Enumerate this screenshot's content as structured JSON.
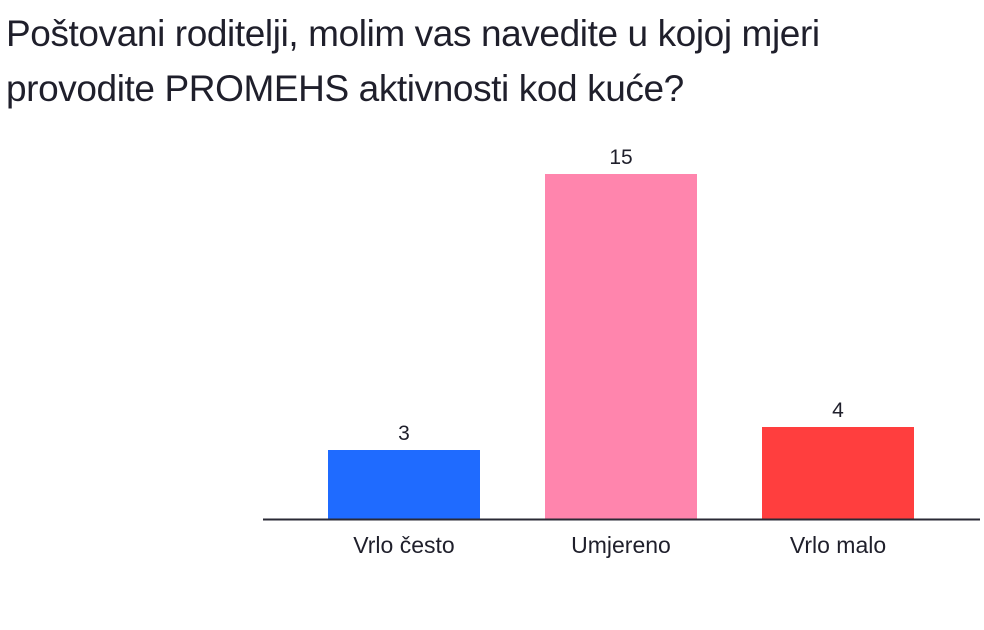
{
  "page": {
    "title": "Poštovani roditelji, molim vas navedite u kojoj mjeri provodite PROMEHS aktivnosti kod kuće?"
  },
  "chart_data": {
    "type": "bar",
    "title": "Poštovani roditelji, molim vas navedite u kojoj mjeri provodite PROMEHS aktivnosti kod kuće?",
    "categories": [
      "Vrlo često",
      "Umjereno",
      "Vrlo malo"
    ],
    "values": [
      3,
      15,
      4
    ],
    "colors": [
      "#1f6bff",
      "#ff85ad",
      "#ff3e3e"
    ],
    "axis_color": "#2a2a35",
    "xlabel": "",
    "ylabel": "",
    "ylim": [
      0,
      15
    ],
    "grid": false,
    "legend": "none",
    "data_labels": true
  }
}
